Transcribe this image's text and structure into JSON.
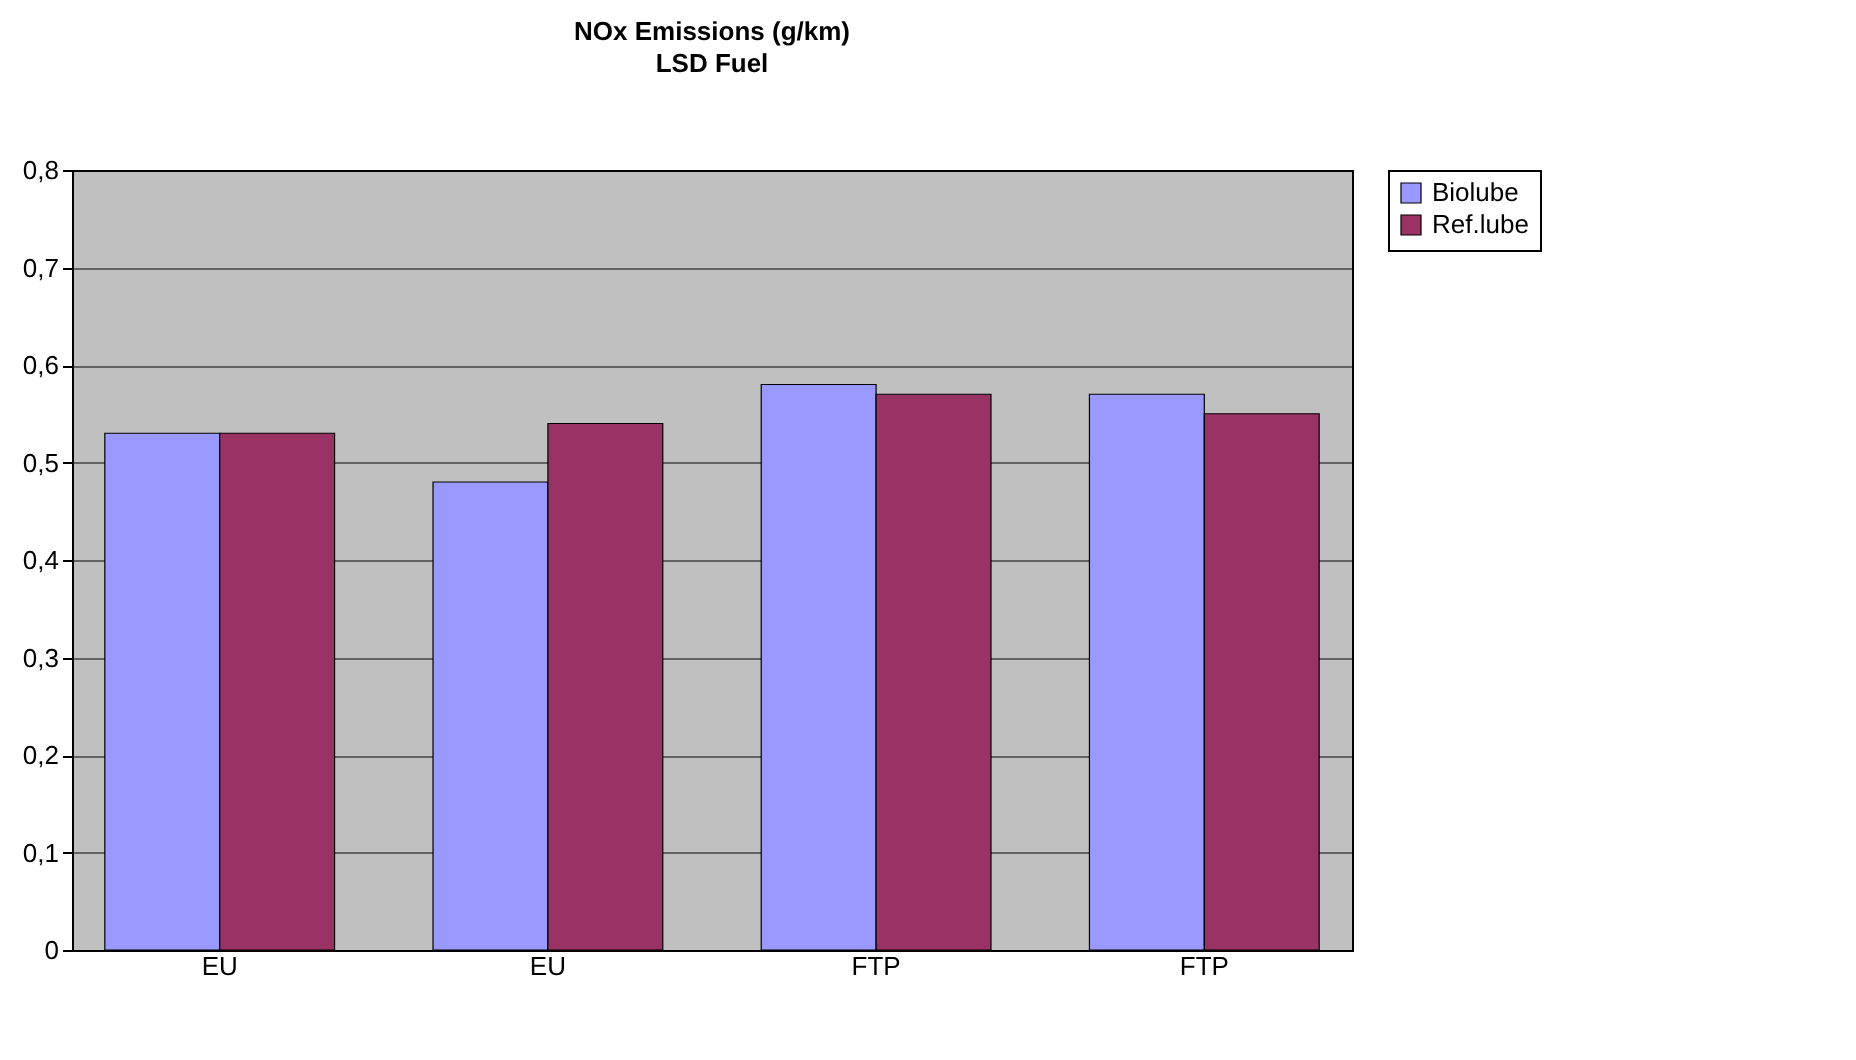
{
  "chart_data": {
    "type": "bar",
    "title": "NOx Emissions (g/km)",
    "subtitle": "LSD Fuel",
    "categories": [
      "EU",
      "EU",
      "FTP",
      "FTP"
    ],
    "series": [
      {
        "name": "Biolube",
        "color": "#9999ff",
        "values": [
          0.53,
          0.48,
          0.58,
          0.57
        ]
      },
      {
        "name": "Ref.lube",
        "color": "#993366",
        "values": [
          0.53,
          0.54,
          0.57,
          0.55
        ]
      }
    ],
    "ylim": [
      0,
      0.8
    ],
    "yticks": [
      {
        "value": 0,
        "label": "0"
      },
      {
        "value": 0.1,
        "label": "0,1"
      },
      {
        "value": 0.2,
        "label": "0,2"
      },
      {
        "value": 0.3,
        "label": "0,3"
      },
      {
        "value": 0.4,
        "label": "0,4"
      },
      {
        "value": 0.5,
        "label": "0,5"
      },
      {
        "value": 0.6,
        "label": "0,6"
      },
      {
        "value": 0.7,
        "label": "0,7"
      },
      {
        "value": 0.8,
        "label": "0,8"
      }
    ],
    "grid": "y",
    "legend": "right"
  }
}
